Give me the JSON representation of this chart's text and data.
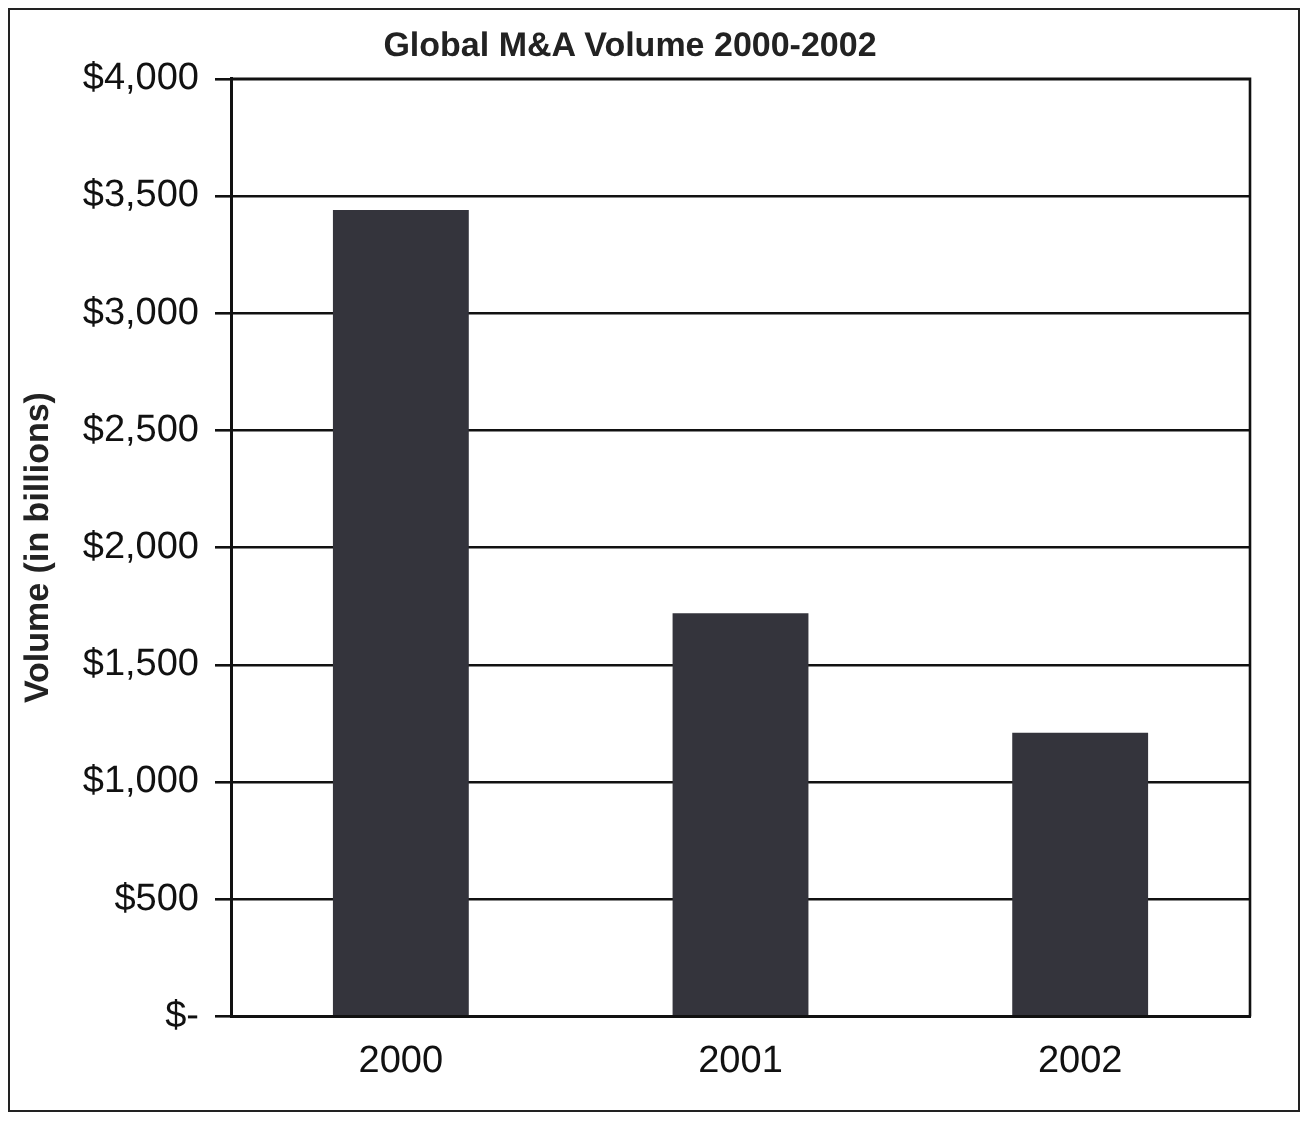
{
  "chart_data": {
    "type": "bar",
    "title": "Global M&A Volume 2000-2002",
    "ylabel": "Volume (in billions)",
    "categories": [
      "2000",
      "2001",
      "2002"
    ],
    "values": [
      3440,
      1720,
      1210
    ],
    "color": "#34343c",
    "ylim": [
      0,
      4000
    ],
    "yticks": [
      {
        "value": 0,
        "label": "$-"
      },
      {
        "value": 500,
        "label": "$500"
      },
      {
        "value": 1000,
        "label": "$1,000"
      },
      {
        "value": 1500,
        "label": "$1,500"
      },
      {
        "value": 2000,
        "label": "$2,000"
      },
      {
        "value": 2500,
        "label": "$2,500"
      },
      {
        "value": 3000,
        "label": "$3,000"
      },
      {
        "value": 3500,
        "label": "$3,500"
      },
      {
        "value": 4000,
        "label": "$4,000"
      }
    ],
    "grid": "y",
    "legend": false
  }
}
